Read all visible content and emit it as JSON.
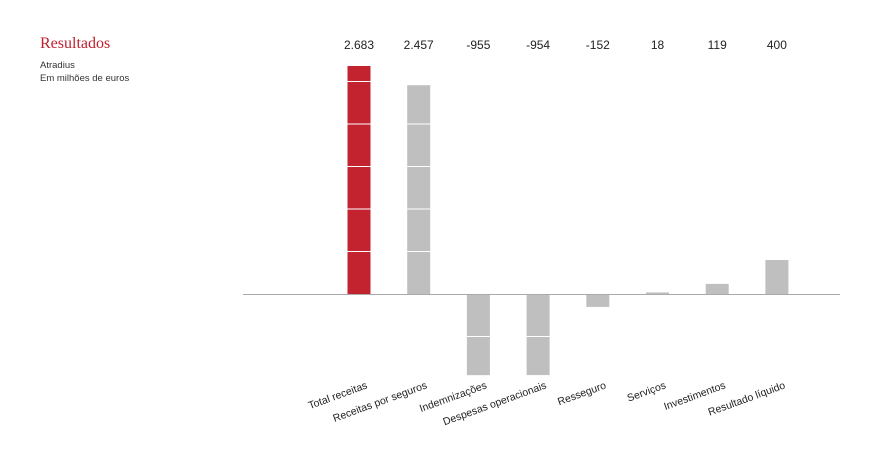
{
  "chart_data": {
    "type": "bar",
    "title": "Resultados",
    "subtitle_lines": [
      "Atradius",
      "Em milhões de euros"
    ],
    "categories": [
      "Total receitas",
      "Receitas por seguros",
      "Indemnizações",
      "Despesas operacionais",
      "Resseguro",
      "Serviços",
      "Investimentos",
      "Resultado líquido"
    ],
    "values": [
      2683,
      2457,
      -955,
      -954,
      -152,
      18,
      119,
      400
    ],
    "value_labels": [
      "2.683",
      "2.457",
      "-955",
      "-954",
      "-152",
      "18",
      "119",
      "400"
    ],
    "colors": [
      "#c3232f",
      "#bfbfbf",
      "#bfbfbf",
      "#bfbfbf",
      "#bfbfbf",
      "#bfbfbf",
      "#bfbfbf",
      "#bfbfbf"
    ],
    "axis_color": "#aaaaaa",
    "segment_line_color": "#ffffff",
    "ylim": [
      -955,
      2683
    ],
    "grid": false,
    "legend": "none"
  }
}
